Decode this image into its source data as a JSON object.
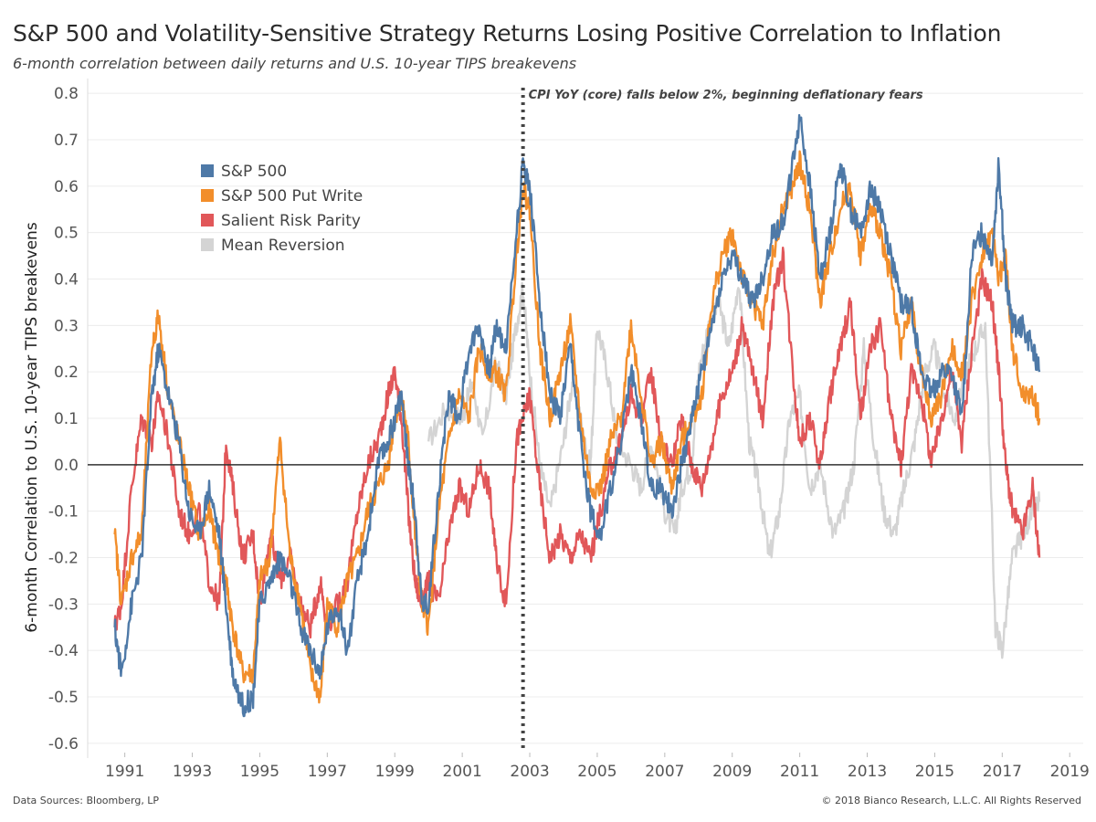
{
  "title": "S&P 500 and Volatility-Sensitive Strategy Returns Losing Positive Correlation to Inflation",
  "subtitle": "6-month correlation between daily returns and U.S. 10-year TIPS breakevens",
  "source": "Data Sources: Bloomberg, LP",
  "copyright": "© 2018 Bianco Research, L.L.C. All Rights Reserved",
  "chart_data": {
    "type": "line",
    "ylabel": "6-month Correlation to U.S. 10-year TIPS breakevens",
    "ylim": [
      -0.62,
      0.82
    ],
    "xlim": [
      1989.9,
      2019.4
    ],
    "yticks": [
      "0.8",
      "0.7",
      "0.6",
      "0.5",
      "0.4",
      "0.3",
      "0.2",
      "0.1",
      "0.0",
      "-0.1",
      "-0.2",
      "-0.3",
      "-0.4",
      "-0.5",
      "-0.6"
    ],
    "xticks": [
      "1991",
      "1993",
      "1995",
      "1997",
      "1999",
      "2001",
      "2003",
      "2005",
      "2007",
      "2009",
      "2011",
      "2013",
      "2015",
      "2017",
      "2019"
    ],
    "grid": "horizontal",
    "legend_position": "top-left",
    "annotation": {
      "x": 2002.8,
      "text": "CPI YoY (core) falls below 2%, beginning deflationary fears"
    },
    "series": [
      {
        "name": "Mean Reversion",
        "color": "#d4d4d4",
        "x": [
          2000.0,
          2000.5,
          2001.0,
          2001.3,
          2001.6,
          2002.0,
          2002.3,
          2002.6,
          2002.8,
          2003.0,
          2003.3,
          2003.6,
          2004.0,
          2004.3,
          2004.6,
          2004.8,
          2005.0,
          2005.3,
          2005.6,
          2006.0,
          2006.3,
          2006.6,
          2007.0,
          2007.3,
          2007.5,
          2007.8,
          2008.0,
          2008.3,
          2008.6,
          2008.9,
          2009.2,
          2009.5,
          2009.8,
          2010.1,
          2010.4,
          2010.7,
          2011.0,
          2011.3,
          2011.6,
          2012.0,
          2012.3,
          2012.6,
          2012.9,
          2013.2,
          2013.5,
          2013.8,
          2014.1,
          2014.4,
          2014.7,
          2015.0,
          2015.3,
          2015.6,
          2015.9,
          2016.2,
          2016.5,
          2016.8,
          2017.0,
          2017.3,
          2017.6,
          2017.9,
          2018.1
        ],
        "y": [
          0.05,
          0.12,
          0.1,
          0.18,
          0.05,
          0.22,
          0.15,
          0.3,
          0.38,
          0.2,
          0.0,
          -0.1,
          0.05,
          0.2,
          0.05,
          0.0,
          0.3,
          0.2,
          0.05,
          0.0,
          -0.05,
          0.05,
          -0.1,
          -0.15,
          -0.05,
          0.0,
          0.2,
          0.3,
          0.35,
          0.25,
          0.4,
          0.05,
          -0.05,
          -0.2,
          -0.1,
          0.1,
          0.15,
          -0.05,
          0.0,
          -0.15,
          -0.1,
          0.0,
          0.25,
          0.05,
          -0.1,
          -0.15,
          -0.05,
          0.05,
          0.2,
          0.25,
          0.15,
          0.1,
          0.2,
          0.25,
          0.3,
          -0.35,
          -0.4,
          -0.2,
          -0.15,
          -0.1,
          -0.08
        ]
      },
      {
        "name": "Salient Risk Parity",
        "color": "#e15759",
        "x": [
          1990.7,
          1990.9,
          1991.2,
          1991.5,
          1991.8,
          1992.0,
          1992.3,
          1992.6,
          1992.9,
          1993.2,
          1993.5,
          1993.8,
          1994.0,
          1994.2,
          1994.5,
          1994.8,
          1995.0,
          1995.3,
          1995.6,
          1995.9,
          1996.2,
          1996.5,
          1996.8,
          1997.0,
          1997.3,
          1997.6,
          1997.9,
          1998.2,
          1998.5,
          1998.8,
          1999.0,
          1999.2,
          1999.4,
          1999.6,
          1999.8,
          2000.0,
          2000.3,
          2000.6,
          2000.9,
          2001.2,
          2001.5,
          2001.8,
          2002.0,
          2002.3,
          2002.6,
          2002.8,
          2003.0,
          2003.3,
          2003.6,
          2003.9,
          2004.2,
          2004.5,
          2004.8,
          2005.1,
          2005.4,
          2005.7,
          2006.0,
          2006.3,
          2006.6,
          2006.9,
          2007.2,
          2007.5,
          2007.8,
          2008.1,
          2008.4,
          2008.7,
          2009.0,
          2009.3,
          2009.6,
          2009.9,
          2010.2,
          2010.5,
          2010.8,
          2011.0,
          2011.3,
          2011.6,
          2011.9,
          2012.2,
          2012.5,
          2012.8,
          2013.1,
          2013.4,
          2013.7,
          2014.0,
          2014.3,
          2014.6,
          2014.9,
          2015.2,
          2015.5,
          2015.8,
          2016.1,
          2016.4,
          2016.7,
          2016.9,
          2017.1,
          2017.3,
          2017.6,
          2017.9,
          2018.1
        ],
        "y": [
          -0.35,
          -0.3,
          -0.05,
          0.1,
          0.05,
          0.15,
          0.05,
          -0.1,
          -0.15,
          -0.1,
          -0.25,
          -0.3,
          0.05,
          -0.05,
          -0.2,
          -0.15,
          -0.3,
          -0.15,
          -0.25,
          -0.2,
          -0.3,
          -0.35,
          -0.25,
          -0.35,
          -0.3,
          -0.25,
          -0.1,
          0.0,
          0.05,
          0.15,
          0.2,
          0.1,
          -0.1,
          -0.25,
          -0.3,
          -0.25,
          -0.3,
          -0.15,
          -0.05,
          -0.1,
          0.0,
          -0.05,
          -0.2,
          -0.3,
          0.05,
          0.1,
          0.15,
          -0.05,
          -0.2,
          -0.15,
          -0.2,
          -0.15,
          -0.2,
          -0.1,
          0.0,
          0.05,
          0.15,
          0.1,
          0.2,
          0.05,
          0.0,
          0.1,
          0.0,
          -0.05,
          0.05,
          0.15,
          0.2,
          0.3,
          0.2,
          0.1,
          0.35,
          0.45,
          0.2,
          0.05,
          0.1,
          0.0,
          0.15,
          0.25,
          0.35,
          0.1,
          0.25,
          0.3,
          0.1,
          0.0,
          0.2,
          0.15,
          0.0,
          0.1,
          0.2,
          0.05,
          0.25,
          0.4,
          0.35,
          0.2,
          0.0,
          -0.1,
          -0.15,
          -0.05,
          -0.2
        ]
      },
      {
        "name": "S&P 500 Put Write",
        "color": "#f28e2b",
        "x": [
          1990.7,
          1990.9,
          1991.2,
          1991.5,
          1991.8,
          1992.0,
          1992.3,
          1992.6,
          1992.9,
          1993.2,
          1993.5,
          1993.8,
          1994.0,
          1994.2,
          1994.5,
          1994.8,
          1995.0,
          1995.3,
          1995.6,
          1995.9,
          1996.2,
          1996.5,
          1996.8,
          1997.0,
          1997.3,
          1997.6,
          1997.9,
          1998.2,
          1998.5,
          1998.8,
          1999.0,
          1999.2,
          1999.4,
          1999.6,
          1999.8,
          2000.0,
          2000.3,
          2000.6,
          2000.9,
          2001.2,
          2001.5,
          2001.8,
          2002.0,
          2002.3,
          2002.6,
          2002.8,
          2003.0,
          2003.3,
          2003.6,
          2003.9,
          2004.2,
          2004.5,
          2004.8,
          2005.1,
          2005.4,
          2005.7,
          2006.0,
          2006.3,
          2006.6,
          2006.9,
          2007.2,
          2007.5,
          2007.8,
          2008.1,
          2008.4,
          2008.7,
          2009.0,
          2009.3,
          2009.6,
          2009.9,
          2010.2,
          2010.5,
          2010.8,
          2011.0,
          2011.3,
          2011.6,
          2011.9,
          2012.2,
          2012.5,
          2012.8,
          2013.1,
          2013.4,
          2013.7,
          2014.0,
          2014.3,
          2014.6,
          2014.9,
          2015.2,
          2015.5,
          2015.8,
          2016.1,
          2016.4,
          2016.7,
          2016.9,
          2017.1,
          2017.3,
          2017.6,
          2017.9,
          2018.1
        ],
        "y": [
          -0.15,
          -0.3,
          -0.2,
          -0.15,
          0.25,
          0.32,
          0.15,
          0.05,
          -0.05,
          -0.15,
          -0.1,
          -0.2,
          -0.25,
          -0.35,
          -0.45,
          -0.45,
          -0.25,
          -0.2,
          0.05,
          -0.2,
          -0.3,
          -0.45,
          -0.5,
          -0.3,
          -0.35,
          -0.25,
          -0.2,
          -0.1,
          -0.05,
          0.0,
          0.1,
          0.15,
          0.05,
          -0.15,
          -0.3,
          -0.35,
          -0.1,
          0.05,
          0.15,
          0.1,
          0.25,
          0.2,
          0.2,
          0.15,
          0.45,
          0.6,
          0.55,
          0.25,
          0.1,
          0.2,
          0.3,
          0.1,
          -0.05,
          -0.05,
          0.05,
          0.1,
          0.3,
          0.15,
          0.0,
          0.05,
          -0.05,
          0.05,
          0.1,
          0.15,
          0.35,
          0.45,
          0.5,
          0.4,
          0.35,
          0.3,
          0.45,
          0.55,
          0.6,
          0.65,
          0.55,
          0.35,
          0.45,
          0.55,
          0.6,
          0.45,
          0.55,
          0.5,
          0.4,
          0.25,
          0.35,
          0.2,
          0.1,
          0.15,
          0.25,
          0.2,
          0.35,
          0.45,
          0.5,
          0.4,
          0.45,
          0.25,
          0.15,
          0.15,
          0.1
        ]
      },
      {
        "name": "S&P 500",
        "color": "#4e79a7",
        "x": [
          1990.7,
          1990.9,
          1991.2,
          1991.5,
          1991.8,
          1992.0,
          1992.3,
          1992.6,
          1992.9,
          1993.2,
          1993.5,
          1993.8,
          1994.0,
          1994.2,
          1994.5,
          1994.8,
          1995.0,
          1995.3,
          1995.6,
          1995.9,
          1996.2,
          1996.5,
          1996.8,
          1997.0,
          1997.3,
          1997.6,
          1997.9,
          1998.2,
          1998.5,
          1998.8,
          1999.0,
          1999.2,
          1999.4,
          1999.6,
          1999.8,
          2000.0,
          2000.3,
          2000.6,
          2000.9,
          2001.2,
          2001.5,
          2001.8,
          2002.0,
          2002.3,
          2002.6,
          2002.8,
          2003.0,
          2003.3,
          2003.6,
          2003.9,
          2004.2,
          2004.5,
          2004.8,
          2005.1,
          2005.4,
          2005.7,
          2006.0,
          2006.3,
          2006.6,
          2006.9,
          2007.2,
          2007.5,
          2007.8,
          2008.1,
          2008.4,
          2008.7,
          2009.0,
          2009.3,
          2009.6,
          2009.9,
          2010.2,
          2010.5,
          2010.8,
          2011.0,
          2011.3,
          2011.6,
          2011.9,
          2012.2,
          2012.5,
          2012.8,
          2013.1,
          2013.4,
          2013.7,
          2014.0,
          2014.3,
          2014.6,
          2014.9,
          2015.2,
          2015.5,
          2015.8,
          2016.1,
          2016.4,
          2016.7,
          2016.9,
          2017.1,
          2017.3,
          2017.6,
          2017.9,
          2018.1
        ],
        "y": [
          -0.35,
          -0.45,
          -0.3,
          -0.2,
          0.15,
          0.25,
          0.15,
          0.05,
          -0.1,
          -0.15,
          -0.05,
          -0.15,
          -0.3,
          -0.45,
          -0.52,
          -0.5,
          -0.3,
          -0.25,
          -0.2,
          -0.25,
          -0.35,
          -0.4,
          -0.45,
          -0.35,
          -0.3,
          -0.4,
          -0.25,
          -0.15,
          0.0,
          0.05,
          0.1,
          0.15,
          0.0,
          -0.1,
          -0.3,
          -0.3,
          -0.05,
          0.15,
          0.1,
          0.25,
          0.3,
          0.2,
          0.3,
          0.25,
          0.5,
          0.65,
          0.6,
          0.35,
          0.15,
          0.1,
          0.25,
          0.05,
          -0.1,
          -0.15,
          -0.05,
          0.05,
          0.2,
          0.1,
          -0.05,
          -0.05,
          -0.1,
          0.0,
          0.1,
          0.2,
          0.3,
          0.4,
          0.45,
          0.4,
          0.35,
          0.4,
          0.5,
          0.52,
          0.65,
          0.75,
          0.6,
          0.4,
          0.5,
          0.65,
          0.55,
          0.5,
          0.6,
          0.55,
          0.45,
          0.35,
          0.35,
          0.2,
          0.15,
          0.2,
          0.2,
          0.1,
          0.45,
          0.5,
          0.45,
          0.65,
          0.4,
          0.3,
          0.3,
          0.25,
          0.2
        ]
      }
    ]
  }
}
